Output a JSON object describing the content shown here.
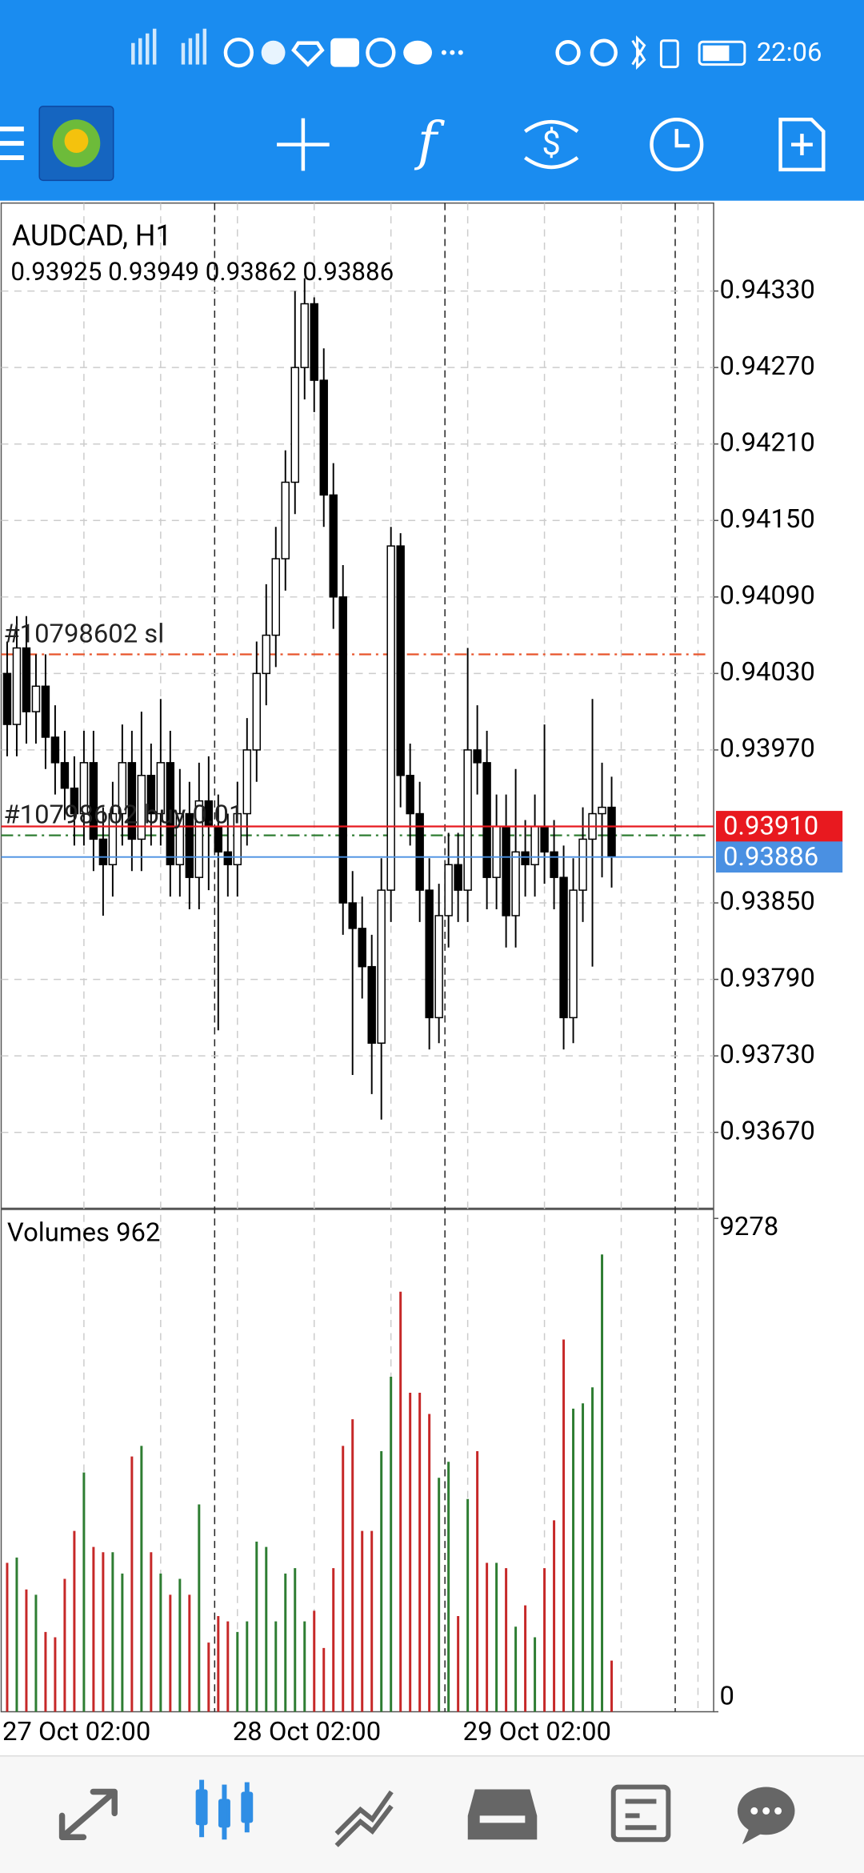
{
  "status_bar": {
    "time": "22:06"
  },
  "chart_data": {
    "type": "candlestick",
    "title": "AUDCAD, H1",
    "ohlc_line": "0.93925 0.93949 0.93862 0.93886",
    "categories": [
      "27 Oct 02:00",
      null,
      null,
      null,
      null,
      null,
      null,
      null,
      null,
      null,
      null,
      null,
      null,
      null,
      null,
      null,
      null,
      null,
      null,
      null,
      null,
      null,
      null,
      null,
      "28 Oct 02:00",
      null,
      null,
      null,
      null,
      null,
      null,
      null,
      null,
      null,
      null,
      null,
      null,
      null,
      null,
      null,
      null,
      null,
      null,
      null,
      null,
      null,
      null,
      null,
      "29 Oct 02:00",
      null,
      null,
      null,
      null,
      null,
      null,
      null,
      null,
      null,
      null,
      null,
      null,
      null,
      null,
      null
    ],
    "open": [
      0.9403,
      0.9399,
      0.9405,
      0.94,
      0.9402,
      0.9398,
      0.9396,
      0.9394,
      0.9392,
      0.9396,
      0.939,
      0.9388,
      0.9392,
      0.9396,
      0.939,
      0.9395,
      0.9392,
      0.9396,
      0.9388,
      0.9392,
      0.9387,
      0.9393,
      0.9391,
      0.9389,
      0.9388,
      0.9392,
      0.9397,
      0.9403,
      0.9406,
      0.9412,
      0.9418,
      0.9427,
      0.9432,
      0.9426,
      0.9417,
      0.9409,
      0.9385,
      0.9383,
      0.938,
      0.9374,
      0.9386,
      0.9413,
      0.9395,
      0.9392,
      0.9386,
      0.9376,
      0.9384,
      0.9388,
      0.9386,
      0.9397,
      0.9396,
      0.9387,
      0.9391,
      0.9384,
      0.9389,
      0.9388,
      0.9391,
      0.9389,
      0.9387,
      0.9376,
      0.9386,
      0.939,
      0.9392,
      0.93925
    ],
    "high": [
      0.94055,
      0.94075,
      0.94075,
      0.94045,
      0.94045,
      0.94005,
      0.93985,
      0.93965,
      0.93985,
      0.93985,
      0.93925,
      0.93945,
      0.9399,
      0.93985,
      0.94,
      0.93975,
      0.9401,
      0.93985,
      0.93955,
      0.93945,
      0.9396,
      0.93965,
      0.93935,
      0.9392,
      0.93945,
      0.93995,
      0.94055,
      0.941,
      0.94145,
      0.94205,
      0.9433,
      0.9434,
      0.94325,
      0.94285,
      0.94195,
      0.94115,
      0.93875,
      0.93855,
      0.93825,
      0.93885,
      0.94145,
      0.9414,
      0.93975,
      0.93945,
      0.93885,
      0.93865,
      0.93905,
      0.93905,
      0.9405,
      0.94005,
      0.93985,
      0.93935,
      0.93935,
      0.93955,
      0.93915,
      0.93935,
      0.9399,
      0.93915,
      0.93895,
      0.93885,
      0.93925,
      0.9401,
      0.9396,
      0.93949
    ],
    "low": [
      0.93965,
      0.93965,
      0.93975,
      0.93975,
      0.93955,
      0.93935,
      0.93915,
      0.93895,
      0.93895,
      0.93875,
      0.9384,
      0.93855,
      0.93895,
      0.93875,
      0.93875,
      0.93895,
      0.93895,
      0.93855,
      0.93855,
      0.93845,
      0.93845,
      0.9386,
      0.9375,
      0.93855,
      0.93855,
      0.93895,
      0.93945,
      0.94005,
      0.94035,
      0.94095,
      0.94155,
      0.94245,
      0.94235,
      0.94145,
      0.94065,
      0.93825,
      0.93715,
      0.93775,
      0.937,
      0.9368,
      0.93835,
      0.93925,
      0.93895,
      0.93835,
      0.93735,
      0.9374,
      0.93815,
      0.93835,
      0.93835,
      0.93935,
      0.93845,
      0.93845,
      0.93815,
      0.93815,
      0.93855,
      0.93855,
      0.93865,
      0.93845,
      0.93735,
      0.9374,
      0.93835,
      0.938,
      0.9387,
      0.93862
    ],
    "close": [
      0.9399,
      0.9405,
      0.94,
      0.9402,
      0.9398,
      0.9396,
      0.9394,
      0.9392,
      0.9396,
      0.939,
      0.9388,
      0.9392,
      0.9396,
      0.939,
      0.9395,
      0.9392,
      0.9396,
      0.9388,
      0.9392,
      0.9387,
      0.9393,
      0.9391,
      0.9389,
      0.9388,
      0.9392,
      0.9397,
      0.9403,
      0.9406,
      0.9412,
      0.9418,
      0.9427,
      0.9432,
      0.9426,
      0.9417,
      0.9409,
      0.9385,
      0.9383,
      0.938,
      0.9374,
      0.9386,
      0.9413,
      0.9395,
      0.9392,
      0.9386,
      0.9376,
      0.9384,
      0.9388,
      0.9386,
      0.9397,
      0.9396,
      0.9387,
      0.9391,
      0.9384,
      0.9389,
      0.9388,
      0.9391,
      0.9389,
      0.9387,
      0.9376,
      0.9386,
      0.939,
      0.9392,
      0.93925,
      0.93886
    ],
    "bull_color": "#ffffff",
    "bear_color": "#000000",
    "ylim": [
      0.9361,
      0.94399
    ],
    "yticks": [
      {
        "value": 0.9433,
        "label": "0.94330"
      },
      {
        "value": 0.9427,
        "label": "0.94270"
      },
      {
        "value": 0.9421,
        "label": "0.94210"
      },
      {
        "value": 0.9415,
        "label": "0.94150"
      },
      {
        "value": 0.9409,
        "label": "0.94090"
      },
      {
        "value": 0.9403,
        "label": "0.94030"
      },
      {
        "value": 0.9397,
        "label": "0.93970"
      },
      {
        "value": 0.9385,
        "label": "0.93850"
      },
      {
        "value": 0.9379,
        "label": "0.93790"
      },
      {
        "value": 0.9373,
        "label": "0.93730"
      },
      {
        "value": 0.9367,
        "label": "0.93670"
      }
    ],
    "grid": true,
    "levels": [
      {
        "name": "#10798602 sl",
        "value": 0.94045,
        "color": "#e8542b"
      },
      {
        "name": "#10798602 buy 0.01",
        "value": 0.93903,
        "color": "#2e7d32"
      }
    ],
    "ask": {
      "value": 0.9391,
      "label": "0.93910",
      "color": "#e8191f"
    },
    "bid": {
      "value": 0.93886,
      "color": "#4a90e2"
    },
    "volume_label": "Volumes 962",
    "volumes": [
      2800,
      2900,
      2300,
      2200,
      1500,
      1400,
      2500,
      3400,
      4500,
      3100,
      3000,
      3000,
      2600,
      4800,
      5000,
      3000,
      2600,
      2200,
      2500,
      2200,
      3900,
      1300,
      1800,
      1700,
      1500,
      1700,
      3200,
      3100,
      1700,
      2600,
      2700,
      1700,
      1900,
      1200,
      2700,
      5000,
      5500,
      3400,
      3400,
      4900,
      6300,
      7900,
      6000,
      6000,
      5600,
      4400,
      4700,
      1800,
      4000,
      4900,
      2800,
      2800,
      2700,
      1600,
      2000,
      1400,
      2700,
      3600,
      7000,
      5700,
      5800,
      6100,
      8600,
      962
    ],
    "volume_up_color": "#2e7d32",
    "volume_down_color": "#c62828",
    "vol_ylim": [
      0,
      9278
    ],
    "vol_yticks": [
      0,
      9278
    ]
  }
}
